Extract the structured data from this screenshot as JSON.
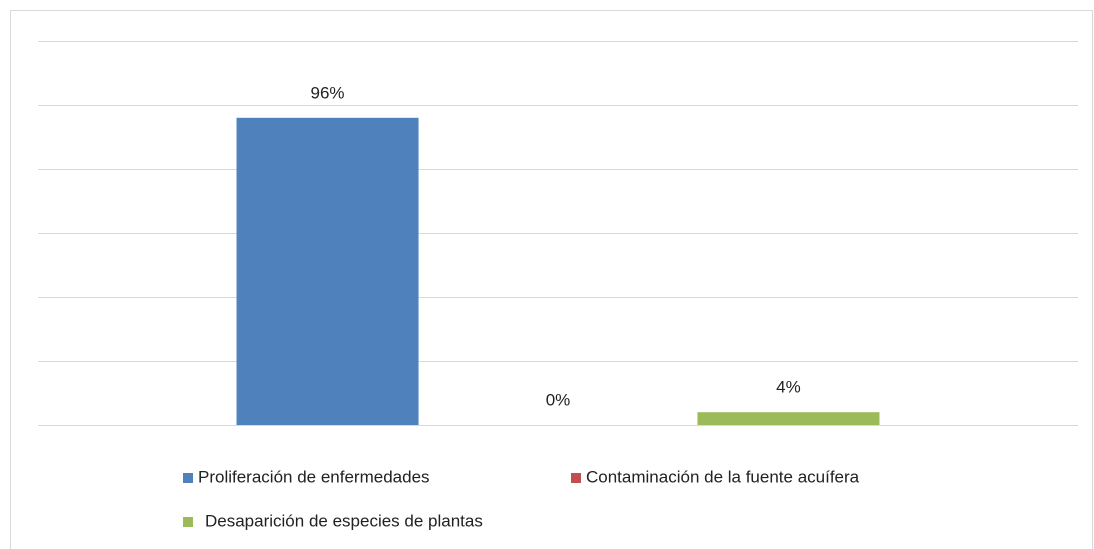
{
  "chart_data": {
    "type": "bar",
    "categories": [
      null
    ],
    "series": [
      {
        "name": "Proliferación de enfermedades",
        "color": "#4f81bd",
        "values": [
          96
        ],
        "value_labels": [
          "96%"
        ]
      },
      {
        "name": "Contaminación de la fuente acuífera",
        "color": "#c0504d",
        "values": [
          0
        ],
        "value_labels": [
          "0%"
        ]
      },
      {
        "name": "Desaparición de especies de plantas",
        "color": "#9bbb59",
        "values": [
          4
        ],
        "value_labels": [
          "4%"
        ]
      }
    ],
    "ylim": [
      0,
      120
    ],
    "yticks": [
      0,
      20,
      40,
      60,
      80,
      100,
      120
    ],
    "grid": true,
    "legend": "bottom"
  }
}
